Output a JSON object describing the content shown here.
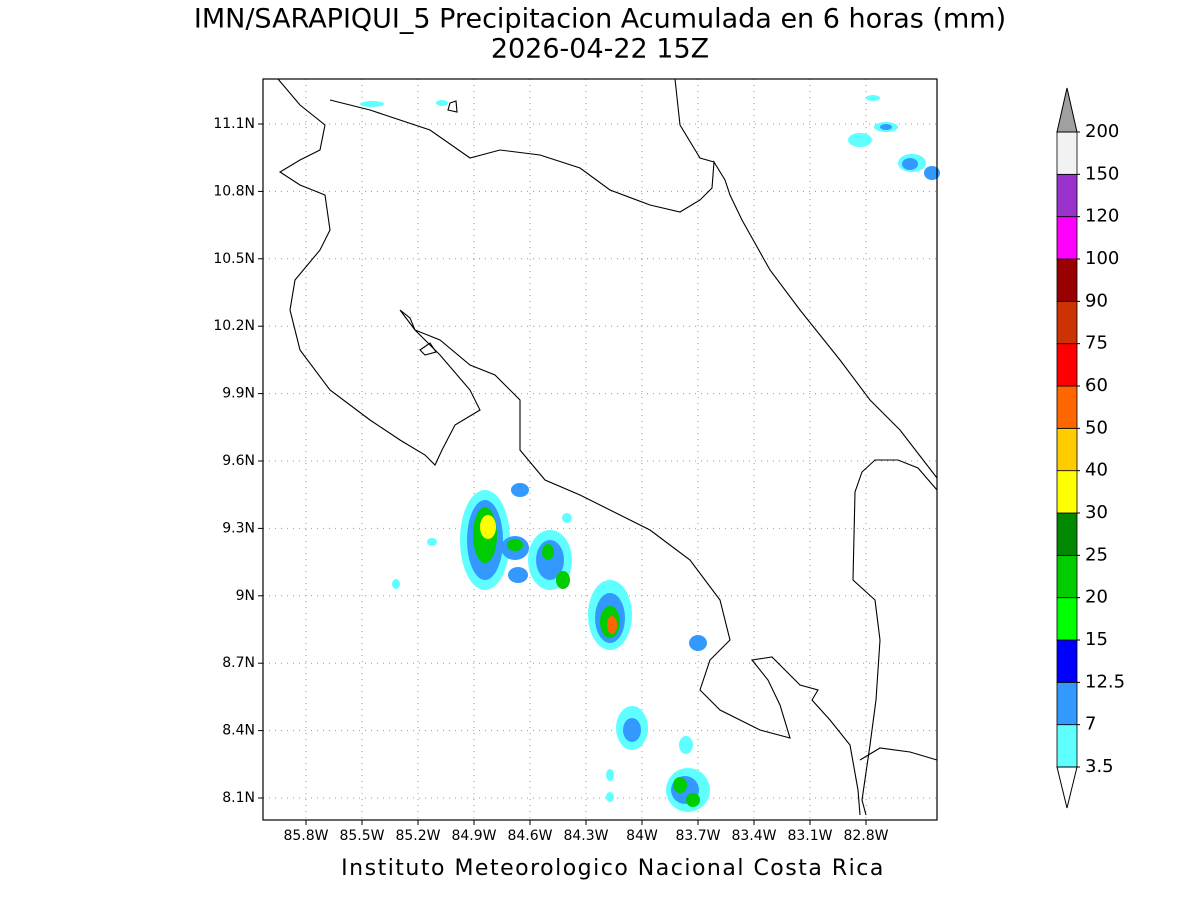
{
  "title": "IMN/SARAPIQUI_5 Precipitacion Acumulada en 6 horas (mm)",
  "subtitle": "2026-04-22 15Z",
  "footer": "Instituto Meteorologico Nacional Costa Rica",
  "map": {
    "xticks": [
      "85.8W",
      "85.5W",
      "85.2W",
      "84.9W",
      "84.6W",
      "84.3W",
      "84W",
      "83.7W",
      "83.4W",
      "83.1W",
      "82.8W"
    ],
    "yticks": [
      "11.1N",
      "10.8N",
      "10.5N",
      "10.2N",
      "9.9N",
      "9.6N",
      "9.3N",
      "9N",
      "8.7N",
      "8.4N",
      "8.1N"
    ],
    "grid": true
  },
  "colorbar": {
    "levels": [
      3.5,
      7,
      12.5,
      15,
      20,
      25,
      30,
      40,
      50,
      60,
      75,
      90,
      100,
      120,
      150,
      200
    ],
    "colors": [
      "#5fffff",
      "#3399ff",
      "#0000ff",
      "#00ff00",
      "#00cc00",
      "#008800",
      "#ffff00",
      "#ffcc00",
      "#ff6600",
      "#ff0000",
      "#cc3300",
      "#990000",
      "#ff00ff",
      "#9933cc",
      "#f2f2f2"
    ],
    "under_color": "#ffffff",
    "over_color": "#a0a0a0"
  }
}
